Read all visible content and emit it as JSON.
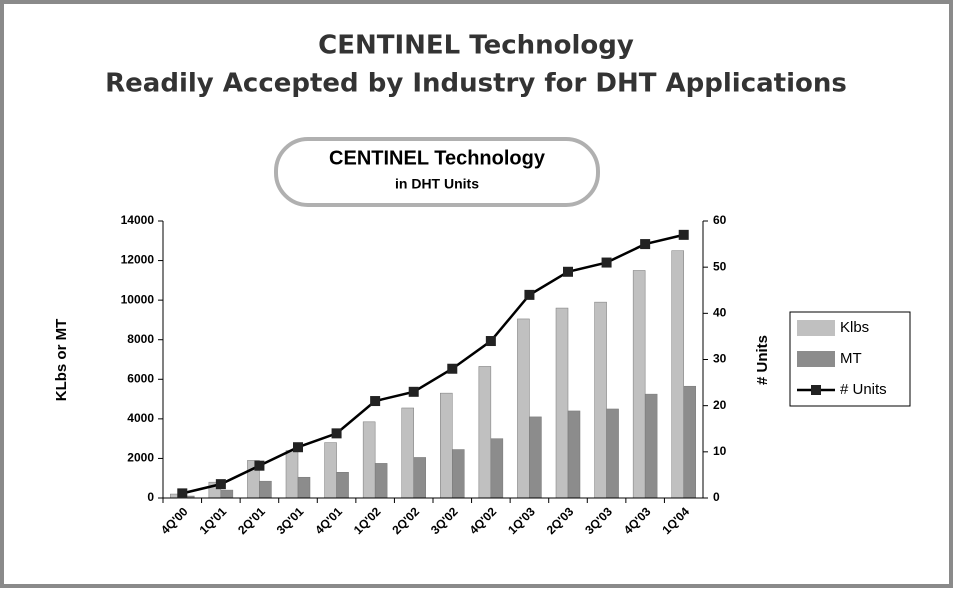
{
  "header": {
    "title": [
      "CENTINEL Technology",
      "Readily Accepted by Industry for DHT Applications"
    ]
  },
  "chart_data": {
    "type": "bar",
    "title": "CENTINEL Technology",
    "subtitle": "in DHT Units",
    "categories": [
      "4Q'00",
      "1Q'01",
      "2Q'01",
      "3Q'01",
      "4Q'01",
      "1Q'02",
      "2Q'02",
      "3Q'02",
      "4Q'02",
      "1Q'03",
      "2Q'03",
      "3Q'03",
      "4Q'03",
      "1Q'04"
    ],
    "series": [
      {
        "name": "Klbs",
        "color": "#c0c0c0",
        "values": [
          200,
          800,
          1900,
          2400,
          2800,
          3850,
          4550,
          5300,
          6650,
          9050,
          9600,
          9900,
          11500,
          12500
        ]
      },
      {
        "name": "MT",
        "color": "#8c8c8c",
        "values": [
          100,
          400,
          850,
          1050,
          1300,
          1750,
          2050,
          2450,
          3000,
          4100,
          4400,
          4500,
          5250,
          5650
        ]
      },
      {
        "name": "# Units",
        "color": "#000000",
        "type": "line",
        "axis": "y2",
        "values": [
          1,
          3,
          7,
          11,
          14,
          21,
          23,
          28,
          34,
          44,
          49,
          51,
          55,
          57
        ]
      }
    ],
    "ylabel": "KLbs or MT",
    "y2label": "# Units",
    "ylim": [
      0,
      14000
    ],
    "yticks": [
      0,
      2000,
      4000,
      6000,
      8000,
      10000,
      12000,
      14000
    ],
    "y2lim": [
      0,
      60
    ],
    "y2ticks": [
      0,
      10,
      20,
      30,
      40,
      50,
      60
    ],
    "legend": "right"
  }
}
